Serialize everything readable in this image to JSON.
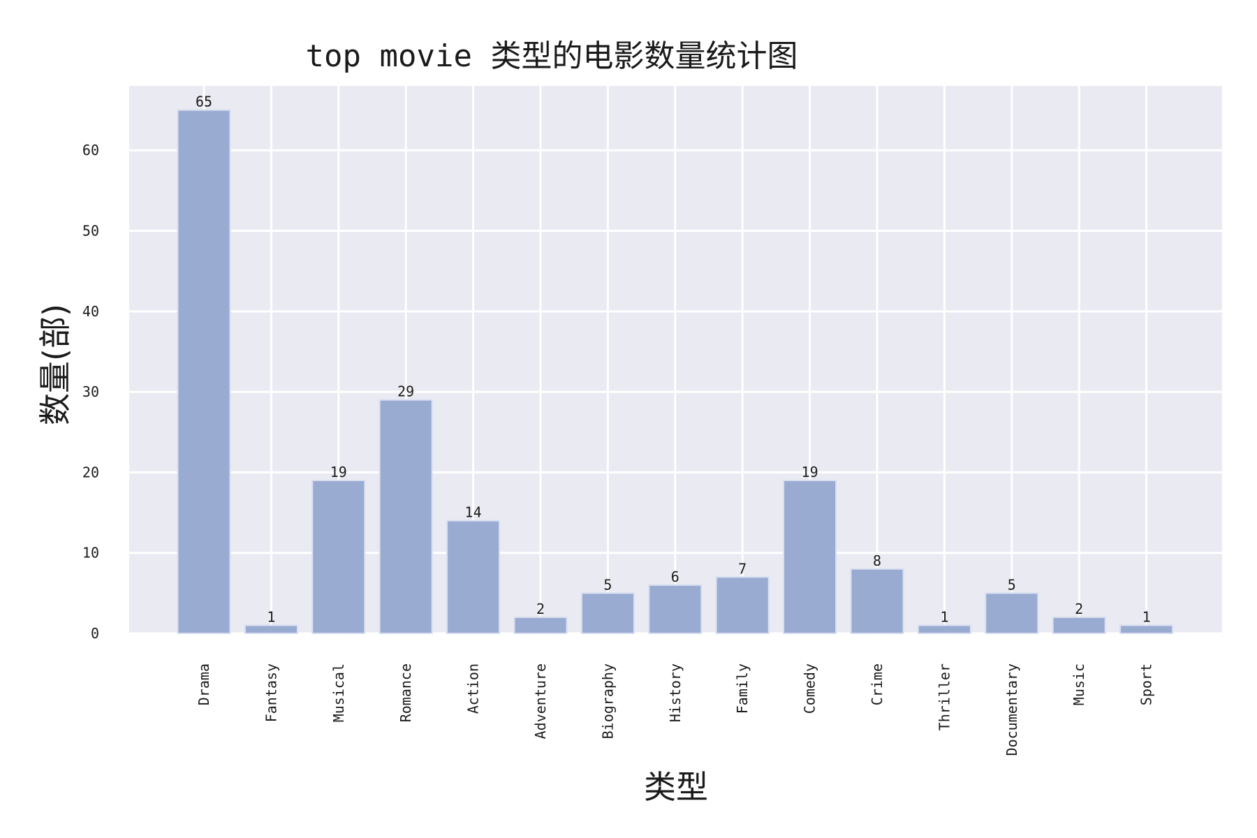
{
  "chart_data": {
    "type": "bar",
    "title": "top movie 类型的电影数量统计图",
    "xlabel": "类型",
    "ylabel": "数量(部)",
    "categories": [
      "Drama",
      "Fantasy",
      "Musical",
      "Romance",
      "Action",
      "Adventure",
      "Biography",
      "History",
      "Family",
      "Comedy",
      "Crime",
      "Thriller",
      "Documentary",
      "Music",
      "Sport"
    ],
    "values": [
      65,
      1,
      19,
      29,
      14,
      2,
      5,
      6,
      7,
      19,
      8,
      1,
      5,
      2,
      1
    ],
    "ylim": [
      0,
      68
    ],
    "yticks": [
      0,
      10,
      20,
      30,
      40,
      50,
      60
    ],
    "grid": true,
    "legend": "none",
    "colors": {
      "bar": "#9aabd1",
      "plot_background": "#eaeaf2",
      "grid": "#ffffff"
    }
  }
}
